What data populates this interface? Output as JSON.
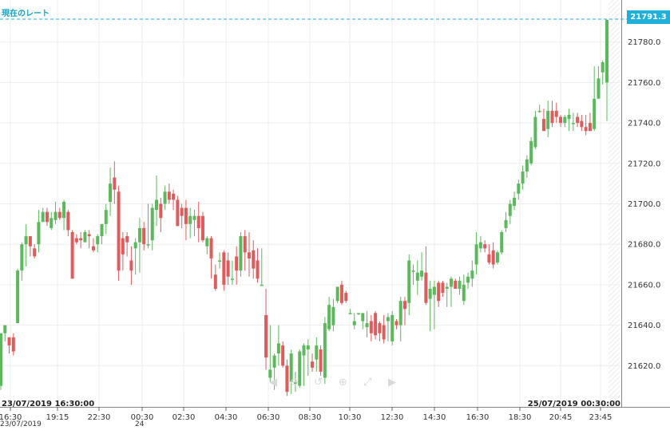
{
  "header": {
    "rate_label": "現在のレート"
  },
  "range": {
    "start": "23/07/2019 16:30:00",
    "end": "25/07/2019 00:30:00"
  },
  "last_price": "21791.3",
  "date_subs": {
    "first": "23/07/2019",
    "second": "24"
  },
  "colors": {
    "up": "#5cb85c",
    "down": "#e05b5b",
    "accent": "#1eb0d8",
    "grid": "#ededed"
  },
  "nav_icons": [
    "chevron-left-icon",
    "zoom-out-icon",
    "reset-icon",
    "zoom-in-icon",
    "fit-icon",
    "chevron-right-icon"
  ],
  "chart_data": {
    "type": "candlestick",
    "ylim": [
      21600,
      21800
    ],
    "y_ticks": [
      "21620.0",
      "21640.0",
      "21660.0",
      "21680.0",
      "21700.0",
      "21720.0",
      "21740.0",
      "21760.0",
      "21780.0"
    ],
    "x_ticks": [
      "16:30",
      "19:15",
      "22:30",
      "00:30",
      "02:30",
      "04:30",
      "06:30",
      "08:30",
      "10:30",
      "12:30",
      "14:30",
      "16:30",
      "18:30",
      "20:45",
      "23:45"
    ],
    "last_value": 21791.3,
    "candles": [
      [
        21610,
        21636,
        21608,
        21636
      ],
      [
        21636,
        21640,
        21632,
        21640
      ],
      [
        21634,
        21630,
        21626,
        21634
      ],
      [
        21634,
        21627,
        21625,
        21636
      ],
      [
        21641,
        21667,
        21641,
        21668
      ],
      [
        21667,
        21680,
        21662,
        21681
      ],
      [
        21680,
        21684,
        21669,
        21690
      ],
      [
        21684,
        21679,
        21674,
        21684
      ],
      [
        21678,
        21674,
        21673,
        21680
      ],
      [
        21680,
        21691,
        21676,
        21697
      ],
      [
        21691,
        21696,
        21692,
        21698
      ],
      [
        21696,
        21691,
        21689,
        21698
      ],
      [
        21688,
        21693,
        21687,
        21696
      ],
      [
        21692,
        21696,
        21690,
        21701
      ],
      [
        21696,
        21693,
        21692,
        21698
      ],
      [
        21693,
        21701,
        21687,
        21702
      ],
      [
        21696,
        21687,
        21684,
        21697
      ],
      [
        21686,
        21663,
        21663,
        21687
      ],
      [
        21683,
        21681,
        21680,
        21685
      ],
      [
        21683,
        21682,
        21678,
        21686
      ],
      [
        21681,
        21686,
        21681,
        21687
      ],
      [
        21685,
        21684,
        21678,
        21687
      ],
      [
        21679,
        21677,
        21676,
        21683
      ],
      [
        21680,
        21684,
        21676,
        21685
      ],
      [
        21684,
        21690,
        21680,
        21690
      ],
      [
        21690,
        21697,
        21685,
        21700
      ],
      [
        21701,
        21710,
        21694,
        21718
      ],
      [
        21713,
        21707,
        21700,
        21721
      ],
      [
        21706,
        21667,
        21662,
        21709
      ],
      [
        21683,
        21675,
        21667,
        21686
      ],
      [
        21684,
        21681,
        21674,
        21686
      ],
      [
        21672,
        21667,
        21660,
        21679
      ],
      [
        21678,
        21681,
        21665,
        21683
      ],
      [
        21681,
        21688,
        21666,
        21693
      ],
      [
        21688,
        21680,
        21677,
        21691
      ],
      [
        21680,
        21680,
        21678,
        21700
      ],
      [
        21682,
        21698,
        21677,
        21700
      ],
      [
        21697,
        21702,
        21689,
        21714
      ],
      [
        21700,
        21693,
        21686,
        21703
      ],
      [
        21700,
        21706,
        21697,
        21709
      ],
      [
        21706,
        21702,
        21700,
        21710
      ],
      [
        21705,
        21702,
        21697,
        21707
      ],
      [
        21702,
        21689,
        21690,
        21704
      ],
      [
        21698,
        21694,
        21688,
        21700
      ],
      [
        21698,
        21690,
        21682,
        21702
      ],
      [
        21690,
        21694,
        21683,
        21698
      ],
      [
        21692,
        21694,
        21684,
        21697
      ],
      [
        21694,
        21688,
        21681,
        21701
      ],
      [
        21694,
        21682,
        21681,
        21696
      ],
      [
        21679,
        21683,
        21675,
        21684
      ],
      [
        21683,
        21673,
        21663,
        21684
      ],
      [
        21665,
        21658,
        21657,
        21670
      ],
      [
        21672,
        21672,
        21668,
        21676
      ],
      [
        21676,
        21660,
        21657,
        21677
      ],
      [
        21672,
        21664,
        21660,
        21676
      ],
      [
        21663,
        21663,
        21660,
        21672
      ],
      [
        21674,
        21667,
        21660,
        21679
      ],
      [
        21667,
        21684,
        21664,
        21686
      ],
      [
        21684,
        21676,
        21667,
        21687
      ],
      [
        21676,
        21673,
        21664,
        21686
      ],
      [
        21677,
        21668,
        21663,
        21682
      ],
      [
        21672,
        21663,
        21661,
        21678
      ],
      [
        21660,
        21660,
        21660,
        21678
      ],
      [
        21645,
        21624,
        21618,
        21658
      ],
      [
        21614,
        21618,
        21612,
        21640
      ],
      [
        21619,
        21625,
        21608,
        21626
      ],
      [
        21626,
        21631,
        21620,
        21640
      ],
      [
        21630,
        21620,
        21619,
        21632
      ],
      [
        21620,
        21607,
        21605,
        21623
      ],
      [
        21612,
        21626,
        21606,
        21628
      ],
      [
        21611,
        21612,
        21607,
        21617
      ],
      [
        21610,
        21627,
        21609,
        21628
      ],
      [
        21625,
        21630,
        21610,
        21631
      ],
      [
        21628,
        21630,
        21615,
        21633
      ],
      [
        21622,
        21619,
        21617,
        21626
      ],
      [
        21623,
        21630,
        21617,
        21634
      ],
      [
        21628,
        21617,
        21615,
        21630
      ],
      [
        21614,
        21641,
        21611,
        21644
      ],
      [
        21638,
        21650,
        21637,
        21654
      ],
      [
        21640,
        21649,
        21637,
        21653
      ],
      [
        21652,
        21659,
        21651,
        21659
      ],
      [
        21660,
        21651,
        21650,
        21662
      ],
      [
        21656,
        21652,
        21651,
        21657
      ],
      [
        21646,
        21646,
        21646,
        21648
      ],
      [
        21640,
        21642,
        21638,
        21646
      ],
      [
        21646,
        21646,
        21645,
        21646
      ],
      [
        21642,
        21646,
        21638,
        21646
      ],
      [
        21639,
        21641,
        21634,
        21647
      ],
      [
        21642,
        21636,
        21632,
        21645
      ],
      [
        21646,
        21635,
        21633,
        21647
      ],
      [
        21641,
        21636,
        21632,
        21642
      ],
      [
        21640,
        21633,
        21631,
        21645
      ],
      [
        21642,
        21644,
        21632,
        21646
      ],
      [
        21632,
        21645,
        21630,
        21647
      ],
      [
        21642,
        21640,
        21638,
        21643
      ],
      [
        21640,
        21652,
        21632,
        21654
      ],
      [
        21652,
        21648,
        21640,
        21654
      ],
      [
        21651,
        21672,
        21645,
        21675
      ],
      [
        21667,
        21667,
        21660,
        21670
      ],
      [
        21662,
        21666,
        21655,
        21672
      ],
      [
        21664,
        21667,
        21662,
        21676
      ],
      [
        21666,
        21651,
        21650,
        21679
      ],
      [
        21653,
        21658,
        21637,
        21662
      ],
      [
        21655,
        21659,
        21638,
        21662
      ],
      [
        21661,
        21652,
        21649,
        21662
      ],
      [
        21661,
        21656,
        21654,
        21662
      ],
      [
        21658,
        21659,
        21649,
        21661
      ],
      [
        21659,
        21663,
        21649,
        21664
      ],
      [
        21662,
        21658,
        21658,
        21663
      ],
      [
        21658,
        21662,
        21655,
        21664
      ],
      [
        21652,
        21660,
        21650,
        21665
      ],
      [
        21661,
        21664,
        21658,
        21666
      ],
      [
        21663,
        21667,
        21659,
        21672
      ],
      [
        21670,
        21680,
        21665,
        21686
      ],
      [
        21678,
        21681,
        21676,
        21684
      ],
      [
        21680,
        21678,
        21676,
        21682
      ],
      [
        21675,
        21671,
        21670,
        21680
      ],
      [
        21677,
        21670,
        21668,
        21681
      ],
      [
        21671,
        21676,
        21670,
        21677
      ],
      [
        21676,
        21686,
        21675,
        21687
      ],
      [
        21688,
        21692,
        21686,
        21696
      ],
      [
        21694,
        21700,
        21690,
        21702
      ],
      [
        21699,
        21703,
        21697,
        21706
      ],
      [
        21705,
        21710,
        21702,
        21712
      ],
      [
        21710,
        21716,
        21707,
        21719
      ],
      [
        21716,
        21722,
        21713,
        21724
      ],
      [
        21720,
        21731,
        21719,
        21733
      ],
      [
        21728,
        21743,
        21727,
        21746
      ],
      [
        21746,
        21746,
        21745,
        21749
      ],
      [
        21742,
        21736,
        21736,
        21747
      ],
      [
        21737,
        21746,
        21733,
        21751
      ],
      [
        21746,
        21740,
        21738,
        21751
      ],
      [
        21746,
        21743,
        21740,
        21750
      ],
      [
        21743,
        21740,
        21738,
        21744
      ],
      [
        21740,
        21743,
        21738,
        21744
      ],
      [
        21742,
        21744,
        21736,
        21747
      ],
      [
        21740,
        21740,
        21736,
        21745
      ],
      [
        21743,
        21740,
        21738,
        21745
      ],
      [
        21741,
        21738,
        21736,
        21744
      ],
      [
        21738,
        21736,
        21734,
        21744
      ],
      [
        21740,
        21736,
        21736,
        21745
      ],
      [
        21737,
        21752,
        21736,
        21768
      ],
      [
        21752,
        21762,
        21752,
        21768
      ],
      [
        21765,
        21770,
        21759,
        21771
      ],
      [
        21760,
        21791,
        21741,
        21791
      ]
    ]
  }
}
